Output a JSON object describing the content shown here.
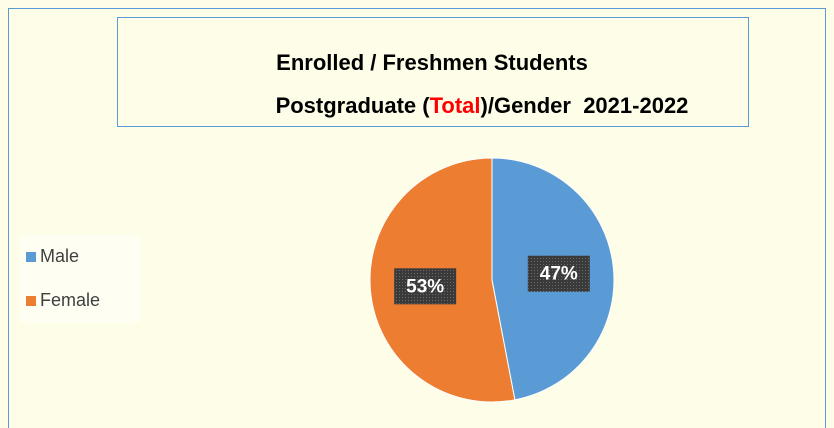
{
  "chart_data": {
    "type": "pie",
    "title": "Enrolled / Freshmen Students",
    "subtitle_parts": [
      {
        "text": "Postgraduate (",
        "color": "#000000"
      },
      {
        "text": "Total",
        "color": "#ff0000"
      },
      {
        "text": ")/Gender  2021-2022",
        "color": "#000000"
      }
    ],
    "categories": [
      "Male",
      "Female"
    ],
    "values": [
      47,
      53
    ],
    "value_labels": [
      "47%",
      "53%"
    ],
    "colors": [
      "#5b9bd5",
      "#ed7d31"
    ],
    "legend": "left"
  }
}
